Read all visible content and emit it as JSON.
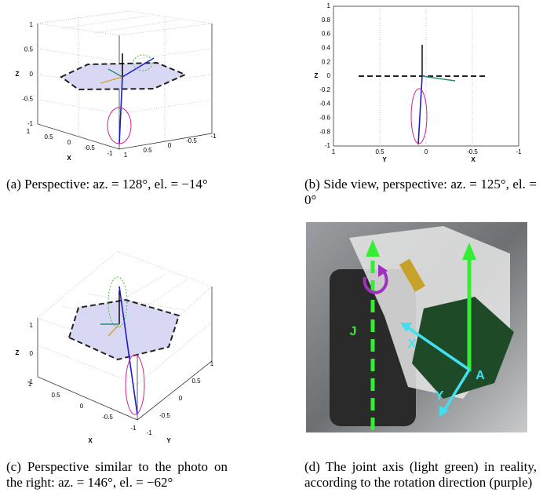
{
  "panels": [
    {
      "caption": "(a) Perspective: az. = 128°, el. = −14°",
      "zlabel": "Z",
      "xlabel": "X",
      "zticks": [
        1,
        0.5,
        0,
        -0.5,
        -1
      ],
      "xticks": [
        1,
        0.5,
        0,
        -0.5,
        -1
      ],
      "yticks": [
        1,
        0.5,
        0,
        -0.5,
        -1
      ]
    },
    {
      "caption": "(b) Side view, perspective: az. = 125°, el. = 0°",
      "zlabel": "Z",
      "ylabel": "Y",
      "xlabel": "X",
      "zticks": [
        1,
        0.8,
        0.6,
        0.4,
        0.2,
        0,
        -0.2,
        -0.4,
        -0.6,
        -0.8,
        -1
      ],
      "hticks": [
        1,
        0.5,
        0,
        -0.5,
        -1
      ]
    },
    {
      "caption": "(c) Perspective similar to the photo on the right: az. = 146°, el. = −62°",
      "zlabel": "Z",
      "xlabel": "X",
      "ylabel": "Y",
      "zticks": [
        1,
        0,
        -1
      ],
      "xticks": [
        1,
        0.5,
        0,
        -0.5,
        -1
      ],
      "yticks": [
        -1,
        -0.5,
        0,
        0.5,
        1
      ]
    },
    {
      "caption": "(d) The joint axis (light green) in reality, according to the rotation direction (purple)",
      "labels": [
        "J",
        "X",
        "Y",
        "A"
      ]
    }
  ]
}
